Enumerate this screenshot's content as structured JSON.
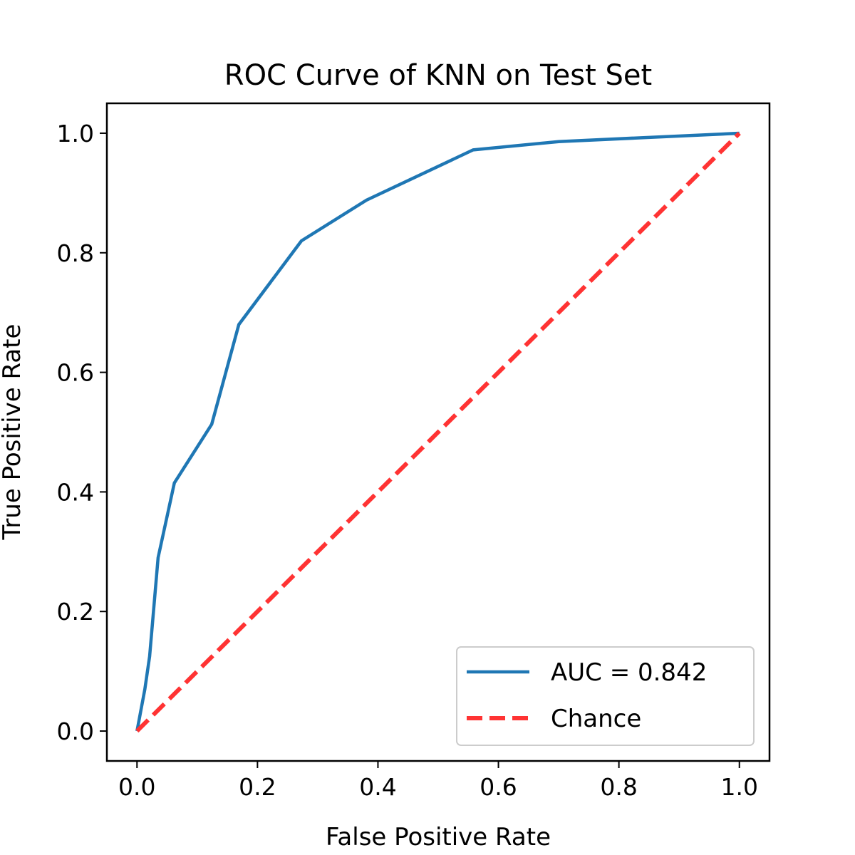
{
  "chart_data": {
    "type": "line",
    "title": "ROC Curve of KNN on Test Set",
    "xlabel": "False Positive Rate",
    "ylabel": "True Positive Rate",
    "xlim": [
      -0.05,
      1.05
    ],
    "ylim": [
      -0.05,
      1.05
    ],
    "xticks": [
      0.0,
      0.2,
      0.4,
      0.6,
      0.8,
      1.0
    ],
    "xtick_labels": [
      "0.0",
      "0.2",
      "0.4",
      "0.6",
      "0.8",
      "1.0"
    ],
    "yticks": [
      0.0,
      0.2,
      0.4,
      0.6,
      0.8,
      1.0
    ],
    "ytick_labels": [
      "0.0",
      "0.2",
      "0.4",
      "0.6",
      "0.8",
      "1.0"
    ],
    "grid": false,
    "legend_position": "lower-right",
    "series": [
      {
        "name": "AUC = 0.842",
        "color": "#1f77b4",
        "style": "solid",
        "x": [
          0.0,
          0.013,
          0.021,
          0.035,
          0.062,
          0.124,
          0.169,
          0.273,
          0.381,
          0.558,
          0.7,
          1.0
        ],
        "y": [
          0.0,
          0.07,
          0.125,
          0.29,
          0.415,
          0.513,
          0.68,
          0.82,
          0.888,
          0.972,
          0.986,
          1.0
        ]
      },
      {
        "name": "Chance",
        "color": "#ff3333",
        "style": "dashed",
        "x": [
          0.0,
          1.0
        ],
        "y": [
          0.0,
          1.0
        ]
      }
    ]
  }
}
